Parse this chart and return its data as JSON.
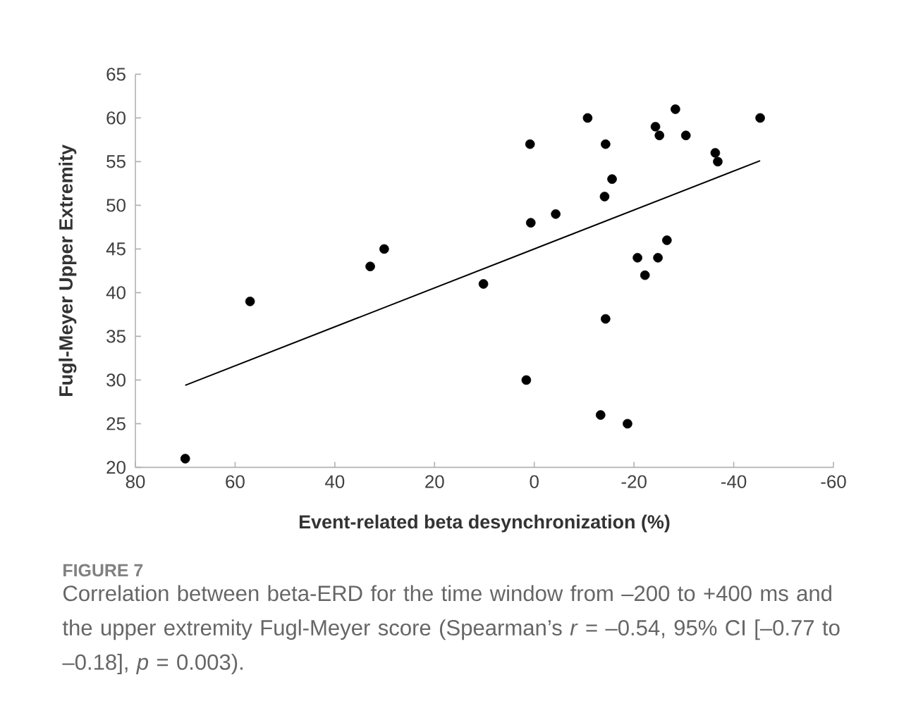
{
  "chart_data": {
    "type": "scatter",
    "xlabel": "Event-related beta desynchronization (%)",
    "ylabel": "Fugl-Meyer Upper Extremity",
    "annotations": [
      "FIGURE 7",
      "Correlation between beta-ERD for the time window from –200 to +400 ms and the upper extremity Fugl-Meyer score (Spearman’s *r* = –0.54, 95% CI [–0.77 to –0.18], *p* = 0.003)."
    ],
    "xlim": [
      80,
      -60
    ],
    "xticks": [
      80,
      60,
      40,
      20,
      0,
      -20,
      -40,
      -60
    ],
    "ylim": [
      20,
      65
    ],
    "yticks": [
      20,
      25,
      30,
      35,
      40,
      45,
      50,
      55,
      60,
      65
    ],
    "grid": false,
    "marker": "circle",
    "series": [
      {
        "color": "#000000",
        "x": [
          70,
          57,
          32.9,
          30.1,
          10.2,
          0.85,
          0.7,
          1.6,
          -4.3,
          -10.7,
          -14.3,
          -14.1,
          -15.6,
          -14.3,
          -13.3,
          -18.7,
          -20.7,
          -22.2,
          -24.8,
          -26.6,
          -24.3,
          -25.1,
          -28.3,
          -30.4,
          -36.3,
          -36.8,
          -45.3
        ],
        "values": [
          21,
          39,
          43,
          45,
          41,
          57,
          48,
          30,
          49,
          60,
          57,
          51,
          53,
          37,
          26,
          25,
          44,
          42,
          44,
          46,
          59,
          58,
          61,
          58,
          56,
          55,
          60
        ]
      },
      {
        "type": "line",
        "color": "#000000",
        "line_style": "solid",
        "marker": "none",
        "x": [
          70,
          -45.3
        ],
        "values": [
          29.4,
          55.1
        ]
      }
    ]
  }
}
